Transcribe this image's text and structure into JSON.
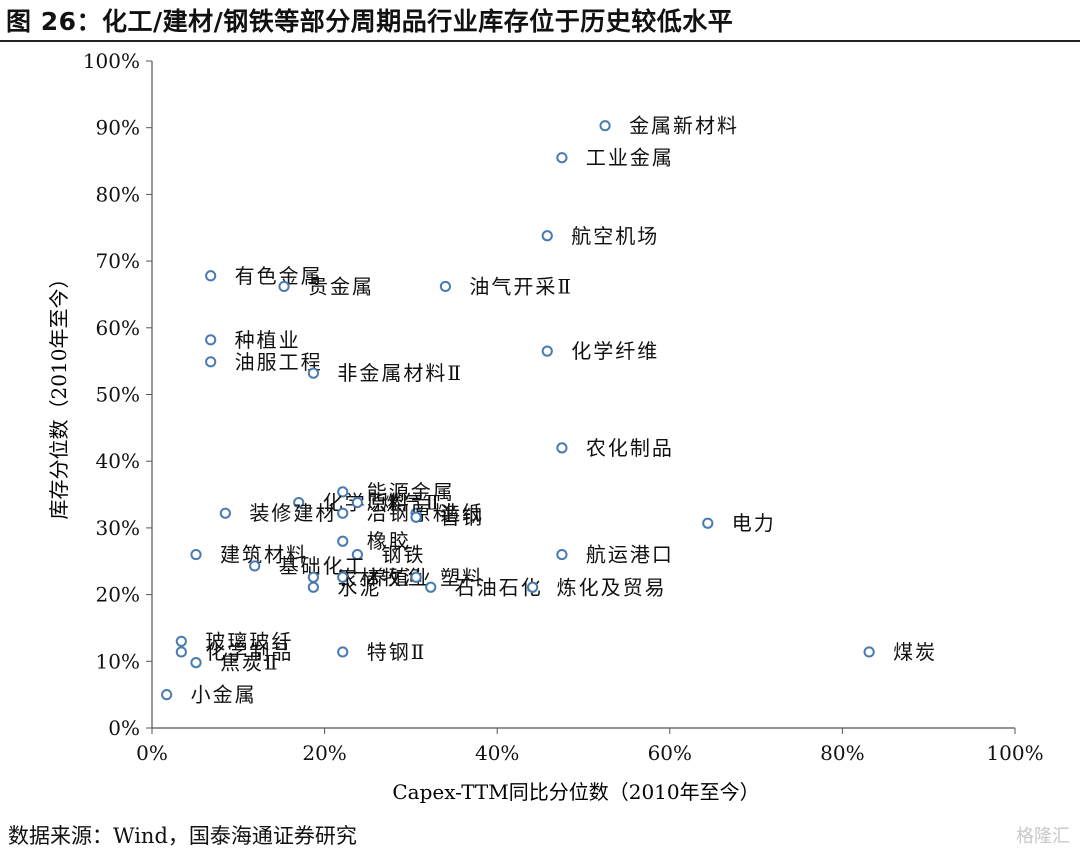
{
  "header": {
    "title": "图 26：化工/建材/钢铁等部分周期品行业库存位于历史较低水平"
  },
  "footer": {
    "source": "数据来源：Wind，国泰海通证券研究",
    "watermark": "格隆汇"
  },
  "colors": {
    "marker": "#4a7bb0",
    "axis": "#555555",
    "text": "#111111"
  },
  "chart_data": {
    "type": "scatter",
    "title": "",
    "xlabel": "Capex-TTM同比分位数（2010年至今）",
    "ylabel": "库存分位数（2010年至今）",
    "xlim": [
      0,
      1
    ],
    "ylim": [
      0,
      1
    ],
    "x_ticks": [
      "0%",
      "20%",
      "40%",
      "60%",
      "80%",
      "100%"
    ],
    "y_ticks": [
      "0%",
      "10%",
      "20%",
      "30%",
      "40%",
      "50%",
      "60%",
      "70%",
      "80%",
      "90%",
      "100%"
    ],
    "grid": false,
    "legend": "none",
    "points": [
      {
        "label": "金属新材料",
        "x": 0.525,
        "y": 0.903
      },
      {
        "label": "工业金属",
        "x": 0.475,
        "y": 0.855
      },
      {
        "label": "航空机场",
        "x": 0.458,
        "y": 0.738
      },
      {
        "label": "有色金属",
        "x": 0.068,
        "y": 0.678
      },
      {
        "label": "贵金属",
        "x": 0.153,
        "y": 0.662
      },
      {
        "label": "油气开采Ⅱ",
        "x": 0.34,
        "y": 0.662
      },
      {
        "label": "种植业",
        "x": 0.068,
        "y": 0.582
      },
      {
        "label": "化学纤维",
        "x": 0.458,
        "y": 0.565
      },
      {
        "label": "油服工程",
        "x": 0.068,
        "y": 0.549
      },
      {
        "label": "非金属材料Ⅱ",
        "x": 0.187,
        "y": 0.532
      },
      {
        "label": "农化制品",
        "x": 0.475,
        "y": 0.42
      },
      {
        "label": "能源金属",
        "x": 0.221,
        "y": 0.354
      },
      {
        "label": "化学原料",
        "x": 0.17,
        "y": 0.338
      },
      {
        "label": "燃气Ⅱ",
        "x": 0.238,
        "y": 0.338
      },
      {
        "label": "造纸",
        "x": 0.306,
        "y": 0.322
      },
      {
        "label": "装修建材",
        "x": 0.085,
        "y": 0.322
      },
      {
        "label": "冶钢原料",
        "x": 0.221,
        "y": 0.322
      },
      {
        "label": "普钢",
        "x": 0.306,
        "y": 0.316
      },
      {
        "label": "电力",
        "x": 0.644,
        "y": 0.307
      },
      {
        "label": "橡胶",
        "x": 0.221,
        "y": 0.28
      },
      {
        "label": "建筑材料",
        "x": 0.051,
        "y": 0.26
      },
      {
        "label": "钢铁",
        "x": 0.238,
        "y": 0.26
      },
      {
        "label": "航运港口",
        "x": 0.475,
        "y": 0.26
      },
      {
        "label": "基础化工",
        "x": 0.119,
        "y": 0.243
      },
      {
        "label": "农林牧渔",
        "x": 0.187,
        "y": 0.226
      },
      {
        "label": "养殖业",
        "x": 0.221,
        "y": 0.226
      },
      {
        "label": "塑料",
        "x": 0.306,
        "y": 0.226
      },
      {
        "label": "石油石化",
        "x": 0.323,
        "y": 0.211
      },
      {
        "label": "水泥",
        "x": 0.187,
        "y": 0.211
      },
      {
        "label": "炼化及贸易",
        "x": 0.441,
        "y": 0.211
      },
      {
        "label": "玻璃玻纤",
        "x": 0.034,
        "y": 0.13
      },
      {
        "label": "化学制品",
        "x": 0.034,
        "y": 0.114
      },
      {
        "label": "特钢Ⅱ",
        "x": 0.221,
        "y": 0.114
      },
      {
        "label": "煤炭",
        "x": 0.831,
        "y": 0.114
      },
      {
        "label": "焦炭Ⅱ",
        "x": 0.051,
        "y": 0.098
      },
      {
        "label": "小金属",
        "x": 0.017,
        "y": 0.05
      }
    ]
  }
}
